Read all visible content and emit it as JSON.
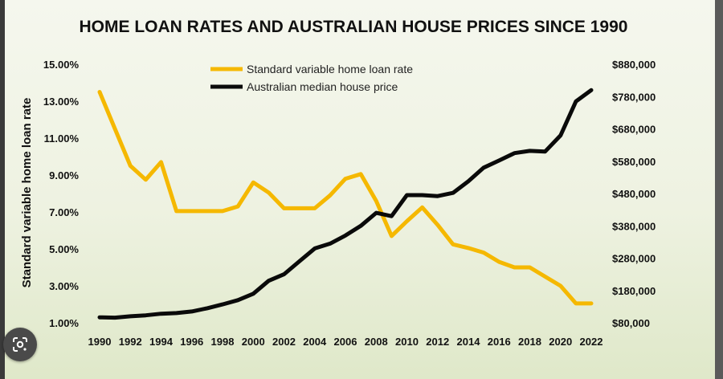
{
  "chart_data": {
    "type": "line",
    "title": "HOME LOAN RATES AND AUSTRALIAN HOUSE PRICES SINCE 1990",
    "ylabel_left": "Standard variable home loan rate",
    "ylabel_right": "",
    "xlabel": "",
    "x": [
      1990,
      1991,
      1992,
      1993,
      1994,
      1995,
      1996,
      1997,
      1998,
      1999,
      2000,
      2001,
      2002,
      2003,
      2004,
      2005,
      2006,
      2007,
      2008,
      2009,
      2010,
      2011,
      2012,
      2013,
      2014,
      2015,
      2016,
      2017,
      2018,
      2019,
      2020,
      2021,
      2022
    ],
    "x_ticks": [
      "1990",
      "1992",
      "1994",
      "1996",
      "1998",
      "2000",
      "2002",
      "2004",
      "2006",
      "2008",
      "2010",
      "2012",
      "2014",
      "2016",
      "2018",
      "2020",
      "2022"
    ],
    "ylim_left": [
      1.0,
      15.0
    ],
    "ylim_right": [
      80000,
      880000
    ],
    "y_ticks_left": [
      "1.00%",
      "3.00%",
      "5.00%",
      "7.00%",
      "9.00%",
      "11.00%",
      "13.00%",
      "15.00%"
    ],
    "y_ticks_right": [
      "$80,000",
      "$180,000",
      "$280,000",
      "$380,000",
      "$480,000",
      "$580,000",
      "$680,000",
      "$780,000",
      "$880,000"
    ],
    "legend_position": "top-center",
    "grid": false,
    "series": [
      {
        "name": "Standard variable home loan rate",
        "axis": "left",
        "color": "#f5b800",
        "values": [
          13.5,
          11.5,
          9.5,
          8.75,
          9.7,
          7.05,
          7.05,
          7.05,
          7.05,
          7.3,
          8.6,
          8.05,
          7.2,
          7.2,
          7.2,
          7.9,
          8.8,
          9.05,
          7.6,
          5.7,
          6.5,
          7.25,
          6.3,
          5.25,
          5.05,
          4.8,
          4.3,
          4.0,
          4.0,
          3.5,
          3.0,
          2.05,
          2.05
        ]
      },
      {
        "name": "Australian median house price",
        "axis": "right",
        "color": "#0a0a0a",
        "values": [
          97000,
          96000,
          100000,
          103000,
          108000,
          110000,
          115000,
          125000,
          137000,
          150000,
          170000,
          210000,
          230000,
          270000,
          310000,
          325000,
          350000,
          380000,
          420000,
          410000,
          475000,
          475000,
          472000,
          482000,
          518000,
          560000,
          582000,
          605000,
          612000,
          610000,
          660000,
          765000,
          800000
        ]
      }
    ]
  },
  "ui": {
    "lens_icon": "google-lens-icon"
  }
}
